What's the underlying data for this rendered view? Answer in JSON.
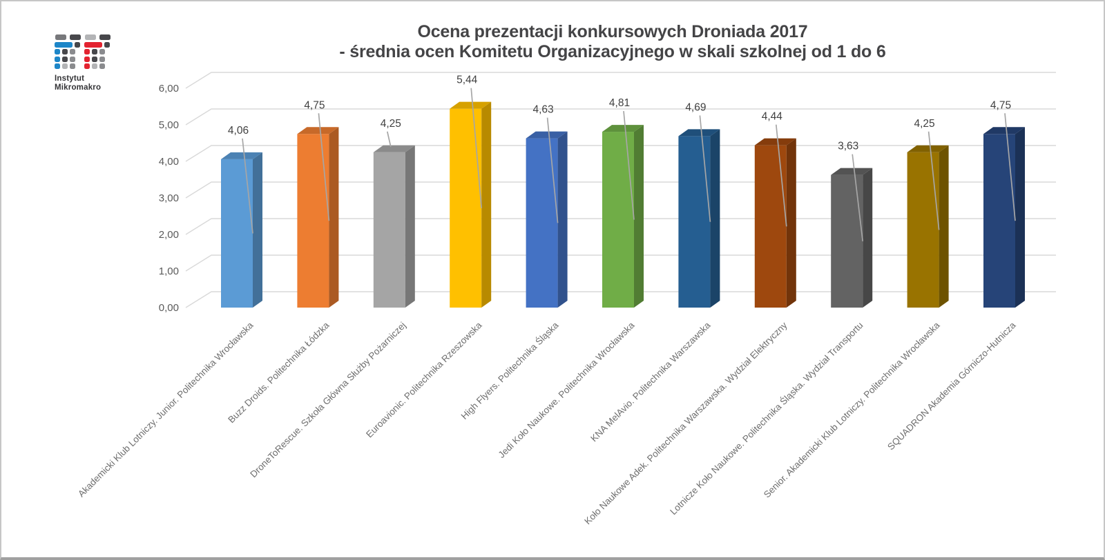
{
  "logo": {
    "line1": "Instytut",
    "line2": "Mikromakro",
    "colors": {
      "blue": "#1d86c8",
      "red": "#e32330",
      "dark": "#47474b",
      "mid": "#77787b",
      "soft": "#8a8b8e",
      "light": "#b3b4b6"
    }
  },
  "chart_data": {
    "type": "bar",
    "style": "3d-column",
    "title": "Ocena prezentacji konkursowych Droniada 2017",
    "subtitle": "- średnia ocen Komitetu Organizacyjnego w skali szkolnej od 1 do 6",
    "categories": [
      "Akademicki Klub Lotniczy. Junior. Politechnika Wrocławska",
      "Buzz Droids. Politechnika Łódzka",
      "DroneToRescue. Szkoła Główna Służby Pożarniczej",
      "Euroavionic. Politechnika Rzeszowska",
      "High Flyers. Politechnika Śląska",
      "Jedi Koło Naukowe. Politechnika Wrocławska",
      "KNA MelAvio. Politechnika Warszawska",
      "Koło Naukowe Adek. Politechnika Warszawska. Wydział Elektryczny",
      "Lotnicze Koło Naukowe. Politechnika Śląska. Wydział Transportu",
      "Senior. Akademicki Klub Lotniczy. Politechnika Wrocławska",
      "SQUADRON Akademia Górniczo-Hutnicza"
    ],
    "values": [
      4.06,
      4.75,
      4.25,
      5.44,
      4.63,
      4.81,
      4.69,
      4.44,
      3.63,
      4.25,
      4.75
    ],
    "value_labels": [
      "4,06",
      "4,75",
      "4,25",
      "5,44",
      "4,63",
      "4,81",
      "4,69",
      "4,44",
      "3,63",
      "4,25",
      "4,75"
    ],
    "bar_colors": [
      "#5B9BD5",
      "#ED7D31",
      "#A5A5A5",
      "#FFC000",
      "#4472C4",
      "#70AD47",
      "#255E91",
      "#9E480E",
      "#636363",
      "#997300",
      "#264478"
    ],
    "y_ticks": [
      "0,00",
      "1,00",
      "2,00",
      "3,00",
      "4,00",
      "5,00",
      "6,00"
    ],
    "y_tick_values": [
      0,
      1,
      2,
      3,
      4,
      5,
      6
    ],
    "ylim": [
      0,
      6
    ],
    "grid": true,
    "legend": false,
    "gridline_color": "#D9D9D9",
    "leader_line_color": "#A6A6A6"
  }
}
